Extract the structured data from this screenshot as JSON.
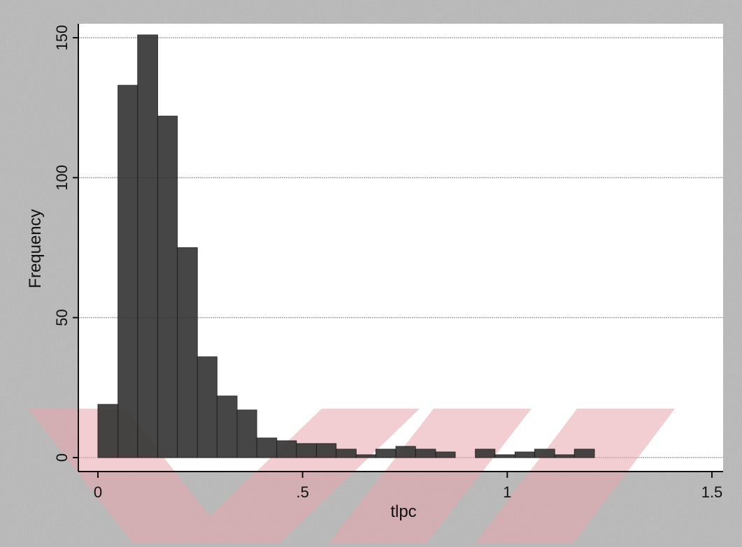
{
  "chart_data": {
    "type": "bar",
    "title": "",
    "xlabel": "tlpc",
    "ylabel": "Frequency",
    "xlim": [
      0,
      1.5
    ],
    "ylim": [
      0,
      150
    ],
    "xticks": [
      0,
      0.5,
      1,
      1.5
    ],
    "xtick_labels": [
      "0",
      ".5",
      "1",
      "1.5"
    ],
    "yticks": [
      0,
      50,
      100,
      150
    ],
    "ytick_labels": [
      "0",
      "50",
      "100",
      "150"
    ],
    "grid": "horizontal",
    "legend": "none",
    "bin_width": 0.0485,
    "bins": [
      {
        "x0": 0.0,
        "x1": 0.049,
        "value": 19
      },
      {
        "x0": 0.049,
        "x1": 0.097,
        "value": 133
      },
      {
        "x0": 0.097,
        "x1": 0.146,
        "value": 151
      },
      {
        "x0": 0.146,
        "x1": 0.194,
        "value": 122
      },
      {
        "x0": 0.194,
        "x1": 0.243,
        "value": 75
      },
      {
        "x0": 0.243,
        "x1": 0.291,
        "value": 36
      },
      {
        "x0": 0.291,
        "x1": 0.34,
        "value": 22
      },
      {
        "x0": 0.34,
        "x1": 0.388,
        "value": 17
      },
      {
        "x0": 0.388,
        "x1": 0.437,
        "value": 7
      },
      {
        "x0": 0.437,
        "x1": 0.485,
        "value": 6
      },
      {
        "x0": 0.485,
        "x1": 0.534,
        "value": 5
      },
      {
        "x0": 0.534,
        "x1": 0.582,
        "value": 5
      },
      {
        "x0": 0.582,
        "x1": 0.631,
        "value": 3
      },
      {
        "x0": 0.631,
        "x1": 0.679,
        "value": 1
      },
      {
        "x0": 0.679,
        "x1": 0.728,
        "value": 3
      },
      {
        "x0": 0.728,
        "x1": 0.776,
        "value": 4
      },
      {
        "x0": 0.776,
        "x1": 0.825,
        "value": 3
      },
      {
        "x0": 0.825,
        "x1": 0.873,
        "value": 2
      },
      {
        "x0": 0.873,
        "x1": 0.922,
        "value": 0
      },
      {
        "x0": 0.922,
        "x1": 0.97,
        "value": 3
      },
      {
        "x0": 0.97,
        "x1": 1.019,
        "value": 1
      },
      {
        "x0": 1.019,
        "x1": 1.067,
        "value": 2
      },
      {
        "x0": 1.067,
        "x1": 1.116,
        "value": 3
      },
      {
        "x0": 1.116,
        "x1": 1.164,
        "value": 1
      },
      {
        "x0": 1.164,
        "x1": 1.213,
        "value": 3
      }
    ]
  },
  "colors": {
    "background": "#b9b9b9",
    "plot_area": "#ffffff",
    "bar_fill": "#333333",
    "bar_stroke": "#1a1a1a",
    "grid": "#a8a8a8",
    "axis": "#111111",
    "watermark": "#e8a5ad"
  }
}
